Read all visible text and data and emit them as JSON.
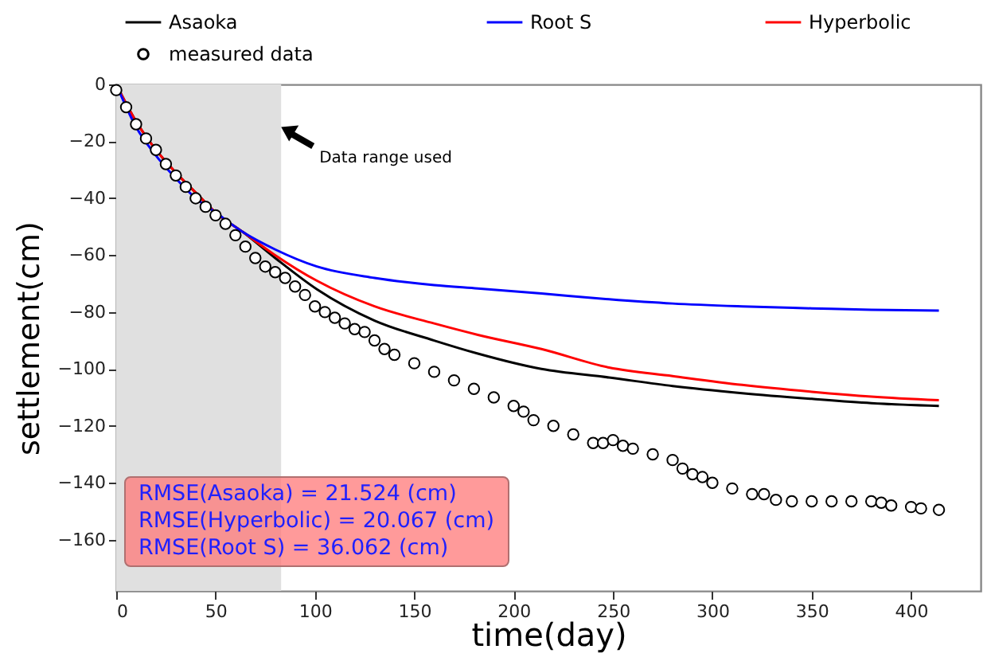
{
  "chart_data": {
    "type": "line",
    "xlabel": "time(day)",
    "ylabel": "settlement(cm)",
    "xlim": [
      0,
      435
    ],
    "ylim": [
      -178,
      0
    ],
    "xticks": [
      0,
      50,
      100,
      150,
      200,
      250,
      300,
      350,
      400
    ],
    "yticks": [
      0,
      -20,
      -40,
      -60,
      -80,
      -100,
      -120,
      -140,
      -160
    ],
    "grid": false,
    "legend": "top",
    "series": [
      {
        "name": "Asaoka",
        "type": "line",
        "color": "#000000",
        "x": [
          0,
          10,
          20,
          30,
          40,
          50,
          64,
          80,
          101,
          130,
          160,
          182,
          214,
          248,
          280,
          315,
          350,
          380,
          414
        ],
        "values": [
          0,
          -13,
          -23,
          -31,
          -38,
          -45,
          -52,
          -61,
          -72,
          -83,
          -90,
          -94.6,
          -100,
          -103,
          -106,
          -108.5,
          -110.5,
          -112,
          -113
        ]
      },
      {
        "name": "Hyperbolic",
        "type": "line",
        "color": "#ff0000",
        "x": [
          0,
          10,
          20,
          30,
          40,
          50,
          64,
          80,
          101,
          130,
          160,
          182,
          214,
          248,
          280,
          315,
          350,
          380,
          414
        ],
        "values": [
          0,
          -13,
          -23,
          -31,
          -38,
          -45,
          -52,
          -60,
          -69,
          -78,
          -84,
          -88,
          -93,
          -99.5,
          -102.5,
          -105.6,
          -108,
          -109.7,
          -111
        ]
      },
      {
        "name": "Root S",
        "type": "line",
        "color": "#0000ff",
        "x": [
          0,
          10,
          20,
          30,
          40,
          50,
          64,
          80,
          101,
          130,
          160,
          182,
          214,
          248,
          280,
          315,
          350,
          380,
          414
        ],
        "values": [
          0,
          -15,
          -25,
          -33,
          -40,
          -45,
          -52,
          -58,
          -64,
          -68,
          -70.5,
          -71.7,
          -73.5,
          -75.5,
          -77,
          -78,
          -78.7,
          -79.2,
          -79.5
        ]
      },
      {
        "name": "measured data",
        "type": "scatter",
        "color": "#000000",
        "marker": "circle",
        "x": [
          0,
          5,
          10,
          15,
          20,
          25,
          30,
          35,
          40,
          45,
          50,
          55,
          60,
          65,
          70,
          75,
          80,
          85,
          90,
          95,
          100,
          105,
          110,
          115,
          120,
          125,
          130,
          135,
          140,
          150,
          160,
          170,
          180,
          190,
          200,
          205,
          210,
          220,
          230,
          240,
          245,
          250,
          255,
          260,
          270,
          280,
          285,
          290,
          295,
          300,
          310,
          320,
          326,
          332,
          340,
          350,
          360,
          370,
          380,
          385,
          390,
          400,
          405,
          414
        ],
        "values": [
          -2,
          -8,
          -14,
          -19,
          -23,
          -28,
          -32,
          -36,
          -40,
          -43,
          -46,
          -49,
          -53,
          -57,
          -61,
          -64,
          -66,
          -68,
          -71,
          -74,
          -78,
          -80,
          -82,
          -84,
          -86,
          -87,
          -90,
          -93,
          -95,
          -98,
          -101,
          -104,
          -107,
          -110,
          -113,
          -115,
          -118,
          -120,
          -123,
          -126,
          -126,
          -125,
          -127,
          -128,
          -130,
          -132,
          -135,
          -137,
          -138,
          -140,
          -142,
          -144,
          -144,
          -146,
          -146.5,
          -146.5,
          -146.5,
          -146.5,
          -146.5,
          -147,
          -148,
          -148.5,
          -149,
          -149.5
        ]
      }
    ],
    "bands": [
      {
        "axis": "x",
        "from": 0,
        "to": 83,
        "color": "#e0e0e0"
      }
    ],
    "annotations": [
      {
        "text": "Data range used",
        "x": 83,
        "y": -15
      },
      "RMSE(Asaoka) = 21.524 (cm)",
      "RMSE(Hyperbolic) = 20.067 (cm)",
      "RMSE(Root S) = 36.062 (cm)"
    ]
  }
}
